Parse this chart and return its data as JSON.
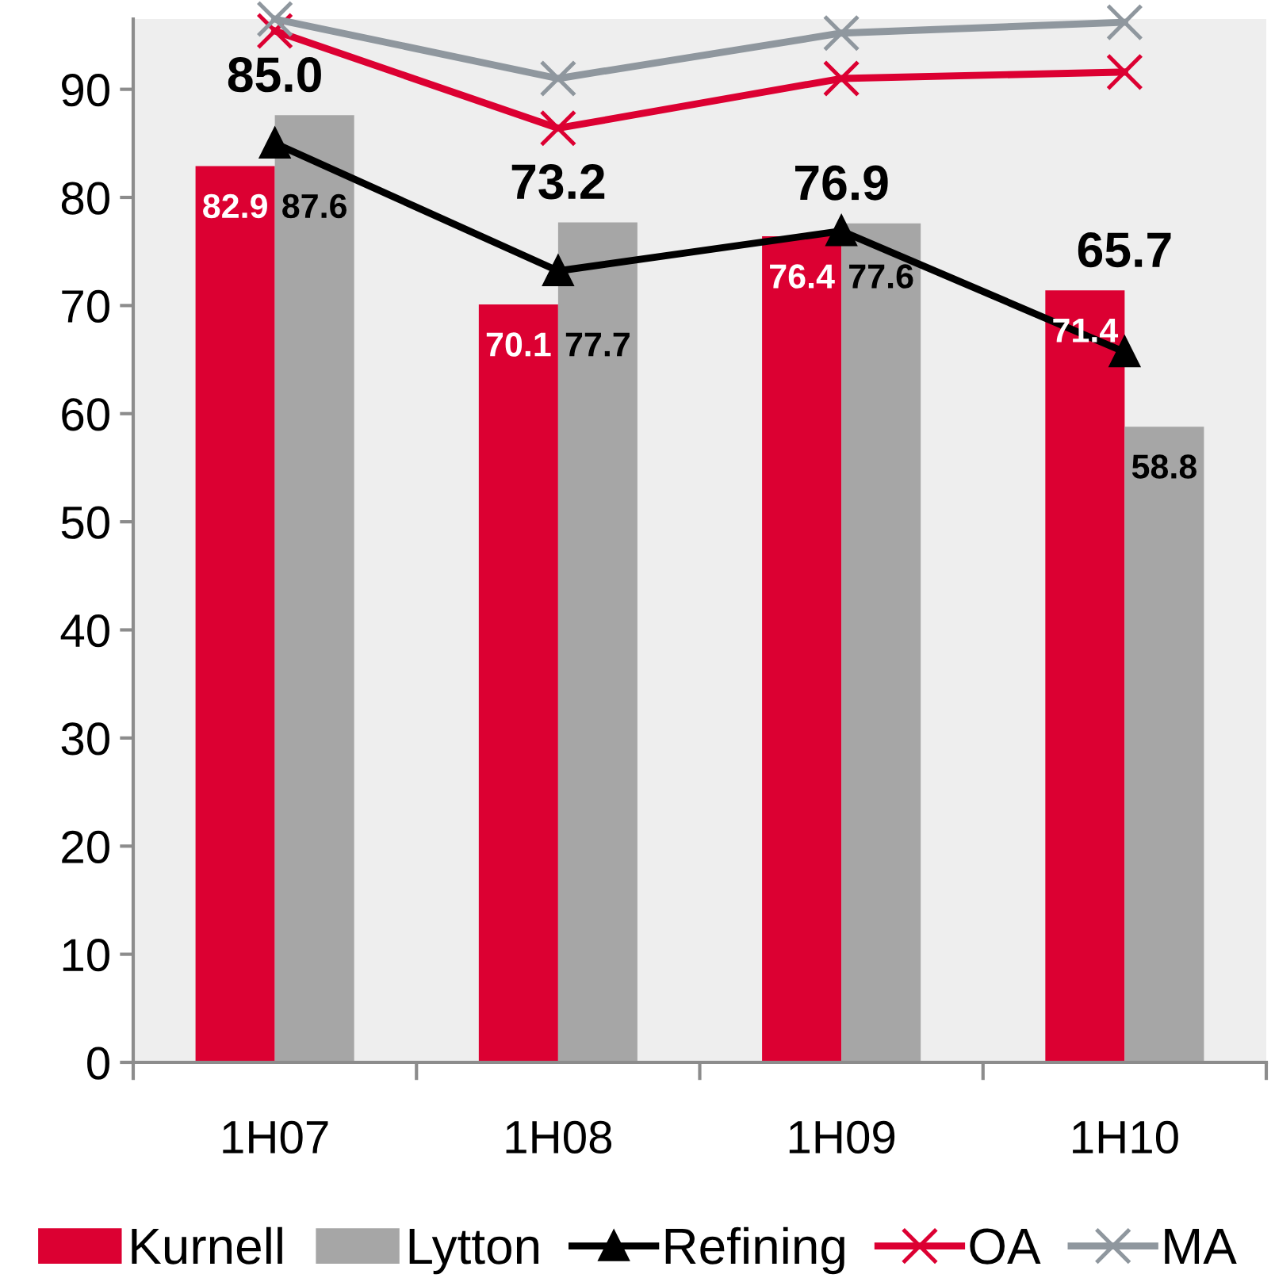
{
  "chart_data": {
    "type": "bar",
    "categories": [
      "1H07",
      "1H08",
      "1H09",
      "1H10"
    ],
    "series": [
      {
        "name": "Kurnell",
        "color": "#dc0032",
        "values": [
          82.9,
          70.1,
          76.4,
          71.4
        ],
        "value_labels": [
          "82.9",
          "70.1",
          "76.4",
          "71.4"
        ]
      },
      {
        "name": "Lytton",
        "color": "#a6a6a6",
        "values": [
          87.6,
          77.7,
          77.6,
          58.8
        ],
        "value_labels": [
          "87.6",
          "77.7",
          "77.6",
          "58.8"
        ]
      },
      {
        "name": "Refining",
        "type": "line",
        "color": "#000000",
        "marker": "triangle",
        "values": [
          85.0,
          73.2,
          76.9,
          65.7
        ],
        "value_labels": [
          "85.0",
          "73.2",
          "76.9",
          "65.7"
        ]
      },
      {
        "name": "OA",
        "type": "line",
        "color": "#dc0032",
        "marker": "cross",
        "values": [
          95.4,
          86.4,
          91.0,
          91.6
        ]
      },
      {
        "name": "MA",
        "type": "line",
        "color": "#8f979e",
        "marker": "cross",
        "values": [
          96.5,
          91.0,
          95.2,
          96.2
        ]
      }
    ],
    "ylim": [
      0,
      96.5
    ],
    "yticks": [
      0,
      10,
      20,
      30,
      40,
      50,
      60,
      70,
      80,
      90
    ],
    "grid": false,
    "legend": "bottom"
  }
}
